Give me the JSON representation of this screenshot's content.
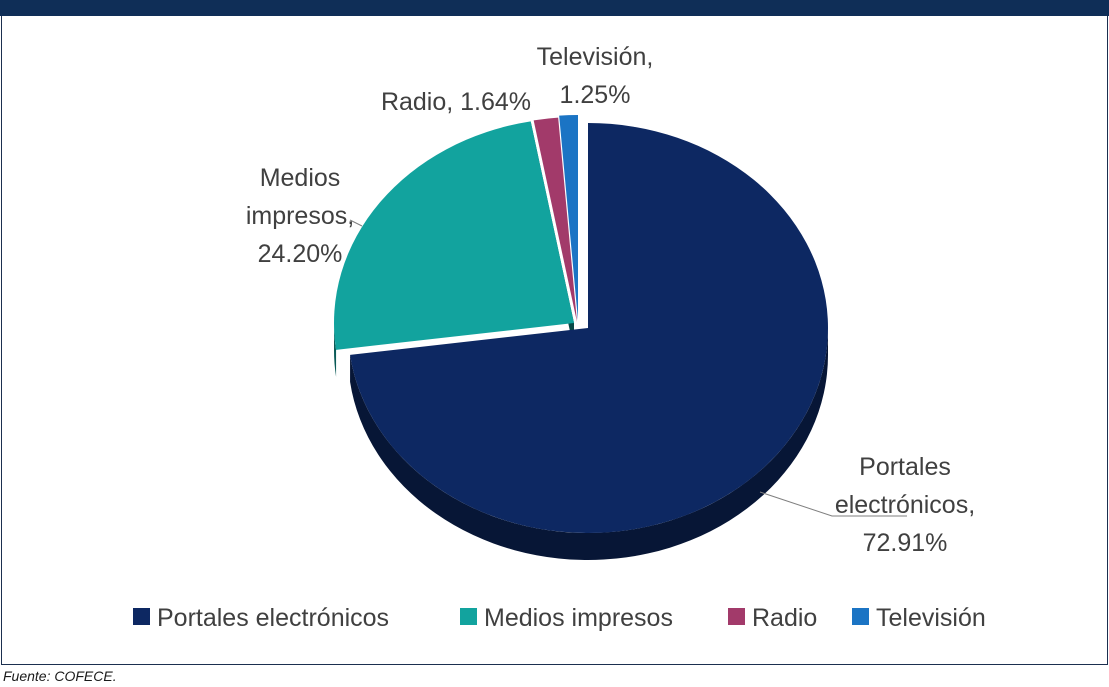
{
  "source": "Fuente: COFECE.",
  "chart_data": {
    "type": "pie",
    "title": "",
    "slices": [
      {
        "name": "Portales electrónicos",
        "value": 72.91,
        "label_lines": [
          "Portales",
          "electrónicos,",
          "72.91%"
        ],
        "color": "#0d2862"
      },
      {
        "name": "Medios impresos",
        "value": 24.2,
        "label_lines": [
          "Medios",
          "impresos,",
          "24.20%"
        ],
        "color": "#12a39e"
      },
      {
        "name": "Radio",
        "value": 1.64,
        "label_lines": [
          "Radio, 1.64%"
        ],
        "color": "#a23a6a"
      },
      {
        "name": "Televisión",
        "value": 1.25,
        "label_lines": [
          "Televisión,",
          "1.25%"
        ],
        "color": "#1b74c4"
      }
    ],
    "legend": [
      "Portales electrónicos",
      "Medios impresos",
      "Radio",
      "Televisión"
    ],
    "legend_position": "bottom"
  }
}
